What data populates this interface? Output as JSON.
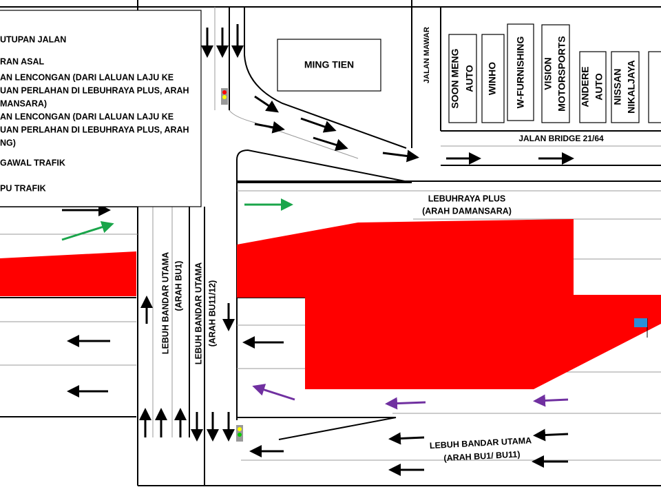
{
  "legend": {
    "items": [
      [
        "UTUPAN JALAN"
      ],
      [
        "RAN ASAL"
      ],
      [
        "AN LENCONGAN (DARI LALUAN LAJU KE",
        "UAN PERLAHAN DI LEBUHRAYA PLUS, ARAH",
        "MANSARA)"
      ],
      [
        "AN LENCONGAN (DARI LALUAN LAJU KE",
        "UAN PERLAHAN DI LEBUHRAYA PLUS, ARAH",
        "NG)"
      ],
      [
        "GAWAL TRAFIK"
      ],
      [
        "PU TRAFIK"
      ]
    ]
  },
  "buildings": {
    "ming_tien": "MING TIEN",
    "shops": [
      [
        "SOON MENG",
        "AUTO"
      ],
      [
        "WINHO"
      ],
      [
        "W-FURNISHING"
      ],
      [
        "VISION",
        "MOTORSPORTS"
      ],
      [
        "ANDERE",
        "AUTO"
      ],
      [
        "NISSAN",
        "NIKALJAYA"
      ]
    ]
  },
  "roads": {
    "jalan_mawar": "JALAN MAWAR",
    "jalan_bridge": "JALAN BRIDGE 21/64",
    "lebuhraya_plus": [
      "LEBUHRAYA PLUS",
      "(ARAH DAMANSARA)"
    ],
    "bu_arah_bu1": [
      "LEBUH BANDAR UTAMA",
      "(ARAH BU1)"
    ],
    "bu_arah_bu11_12": [
      "LEBUH BANDAR UTAMA",
      "(ARAH BU11/12)"
    ],
    "bu_bottom": [
      "LEBUH BANDAR UTAMA",
      "(ARAH BU1/ BU11)"
    ]
  }
}
